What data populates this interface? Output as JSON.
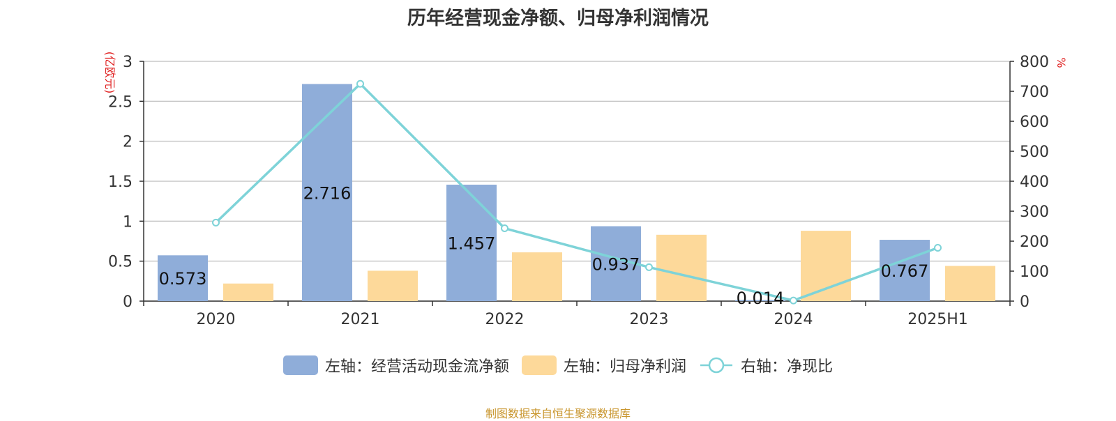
{
  "chart_data": {
    "type": "bar",
    "title": "历年经营现金净额、归母净利润情况",
    "categories": [
      "2020",
      "2021",
      "2022",
      "2023",
      "2024",
      "2025H1"
    ],
    "left_axis": {
      "unit": "(亿欧元)",
      "ylim": [
        0,
        3
      ],
      "ticks": [
        "0",
        "0.5",
        "1",
        "1.5",
        "2",
        "2.5",
        "3"
      ]
    },
    "right_axis": {
      "unit": "%",
      "ylim": [
        0,
        800
      ],
      "ticks": [
        "0",
        "100",
        "200",
        "300",
        "400",
        "500",
        "600",
        "700",
        "800"
      ]
    },
    "series": [
      {
        "name": "左轴：经营活动现金流净额",
        "type": "bar",
        "axis": "left",
        "color": "#8fadd9",
        "values": [
          0.573,
          2.716,
          1.457,
          0.937,
          0.014,
          0.767
        ],
        "labels": [
          "0.573",
          "2.716",
          "1.457",
          "0.937",
          "0.014",
          "0.767"
        ]
      },
      {
        "name": "左轴：归母净利润",
        "type": "bar",
        "axis": "left",
        "color": "#fdd99a",
        "values": [
          0.22,
          0.38,
          0.61,
          0.83,
          0.88,
          0.44
        ]
      },
      {
        "name": "右轴：净现比",
        "type": "line",
        "axis": "right",
        "color": "#7ed3d8",
        "values": [
          262,
          725,
          243,
          113,
          2,
          178
        ]
      }
    ],
    "grid": true,
    "legend_position": "bottom"
  },
  "source": "制图数据来自恒生聚源数据库"
}
